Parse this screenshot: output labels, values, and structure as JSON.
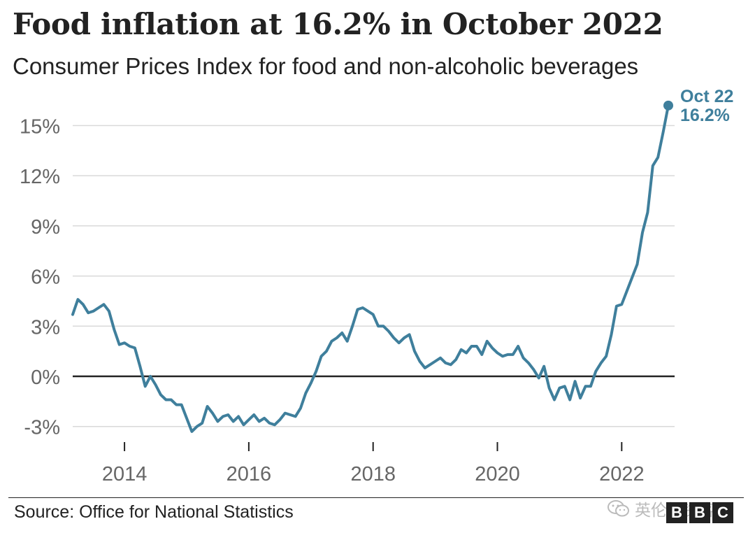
{
  "header": {
    "title": "Food inflation at 16.2% in October 2022",
    "subtitle": "Consumer Prices Index for food and non-alcoholic beverages"
  },
  "footer": {
    "source": "Source: Office for National Statistics",
    "watermark_text": "英伦投资客",
    "watermark_icon": "wechat-icon",
    "logo_letters": [
      "B",
      "B",
      "C"
    ]
  },
  "colors": {
    "line": "#3f7f9c",
    "grid": "#d9d9d9",
    "zero_line": "#222222",
    "tick_text": "#666666",
    "text": "#222222"
  },
  "chart_data": {
    "type": "line",
    "title": "Food inflation at 16.2% in October 2022",
    "subtitle": "Consumer Prices Index for food and non-alcoholic beverages",
    "xlabel": "",
    "ylabel": "",
    "ylim": [
      -3.5,
      16.5
    ],
    "yticks": [
      15,
      12,
      9,
      6,
      3,
      0,
      -3
    ],
    "ytick_labels": [
      "15%",
      "12%",
      "9%",
      "6%",
      "3%",
      "0%",
      "-3%"
    ],
    "xticks": [
      "2014",
      "2016",
      "2018",
      "2020",
      "2022"
    ],
    "x_range": [
      "2013-03",
      "2022-10"
    ],
    "grid": true,
    "legend": "none",
    "annotation": {
      "label": "Oct 22",
      "value_label": "16.2%",
      "x": "2022-10",
      "y": 16.2
    },
    "series": [
      {
        "start": "2013-03",
        "frequency": "monthly",
        "x": [
          "2013-03",
          "2013-04",
          "2013-05",
          "2013-06",
          "2013-07",
          "2013-08",
          "2013-09",
          "2013-10",
          "2013-11",
          "2013-12",
          "2014-01",
          "2014-02",
          "2014-03",
          "2014-04",
          "2014-05",
          "2014-06",
          "2014-07",
          "2014-08",
          "2014-09",
          "2014-10",
          "2014-11",
          "2014-12",
          "2015-01",
          "2015-02",
          "2015-03",
          "2015-04",
          "2015-05",
          "2015-06",
          "2015-07",
          "2015-08",
          "2015-09",
          "2015-10",
          "2015-11",
          "2015-12",
          "2016-01",
          "2016-02",
          "2016-03",
          "2016-04",
          "2016-05",
          "2016-06",
          "2016-07",
          "2016-08",
          "2016-09",
          "2016-10",
          "2016-11",
          "2016-12",
          "2017-01",
          "2017-02",
          "2017-03",
          "2017-04",
          "2017-05",
          "2017-06",
          "2017-07",
          "2017-08",
          "2017-09",
          "2017-10",
          "2017-11",
          "2017-12",
          "2018-01",
          "2018-02",
          "2018-03",
          "2018-04",
          "2018-05",
          "2018-06",
          "2018-07",
          "2018-08",
          "2018-09",
          "2018-10",
          "2018-11",
          "2018-12",
          "2019-01",
          "2019-02",
          "2019-03",
          "2019-04",
          "2019-05",
          "2019-06",
          "2019-07",
          "2019-08",
          "2019-09",
          "2019-10",
          "2019-11",
          "2019-12",
          "2020-01",
          "2020-02",
          "2020-03",
          "2020-04",
          "2020-05",
          "2020-06",
          "2020-07",
          "2020-08",
          "2020-09",
          "2020-10",
          "2020-11",
          "2020-12",
          "2021-01",
          "2021-02",
          "2021-03",
          "2021-04",
          "2021-05",
          "2021-06",
          "2021-07",
          "2021-08",
          "2021-09",
          "2021-10",
          "2021-11",
          "2021-12",
          "2022-01",
          "2022-02",
          "2022-03",
          "2022-04",
          "2022-05",
          "2022-06",
          "2022-07",
          "2022-08",
          "2022-09",
          "2022-10"
        ],
        "values": [
          3.7,
          4.6,
          4.3,
          3.8,
          3.9,
          4.1,
          4.3,
          3.9,
          2.8,
          1.9,
          2.0,
          1.8,
          1.7,
          0.6,
          -0.6,
          0.0,
          -0.5,
          -1.1,
          -1.4,
          -1.4,
          -1.7,
          -1.7,
          -2.5,
          -3.3,
          -3.0,
          -2.8,
          -1.8,
          -2.2,
          -2.7,
          -2.4,
          -2.3,
          -2.7,
          -2.4,
          -2.9,
          -2.6,
          -2.3,
          -2.7,
          -2.5,
          -2.8,
          -2.9,
          -2.6,
          -2.2,
          -2.3,
          -2.4,
          -1.9,
          -1.0,
          -0.4,
          0.3,
          1.2,
          1.5,
          2.1,
          2.3,
          2.6,
          2.1,
          3.0,
          4.0,
          4.1,
          3.9,
          3.7,
          3.0,
          3.0,
          2.7,
          2.3,
          2.0,
          2.3,
          2.5,
          1.5,
          0.9,
          0.5,
          0.7,
          0.9,
          1.1,
          0.8,
          0.7,
          1.0,
          1.6,
          1.4,
          1.8,
          1.8,
          1.3,
          2.1,
          1.7,
          1.4,
          1.2,
          1.3,
          1.3,
          1.8,
          1.1,
          0.8,
          0.4,
          -0.1,
          0.6,
          -0.7,
          -1.4,
          -0.7,
          -0.6,
          -1.4,
          -0.3,
          -1.3,
          -0.6,
          -0.6,
          0.3,
          0.8,
          1.2,
          2.5,
          4.2,
          4.3,
          5.1,
          5.9,
          6.7,
          8.6,
          9.8,
          12.6,
          13.1,
          14.6,
          16.2
        ]
      }
    ]
  }
}
